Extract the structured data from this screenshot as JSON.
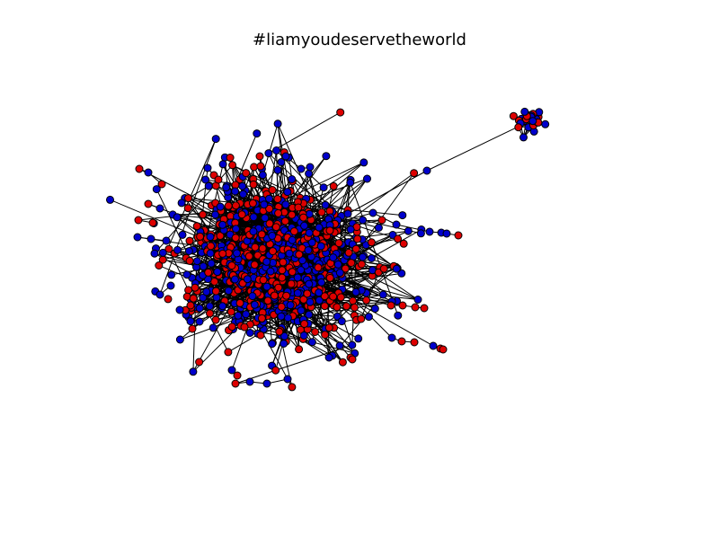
{
  "figure": {
    "title": "#liamyoudeservetheworld"
  },
  "graph": {
    "node_colors": {
      "group_a": "#0000cc",
      "group_b": "#dd0000"
    },
    "node_stroke": "#000000",
    "edge_color": "#000000"
  }
}
